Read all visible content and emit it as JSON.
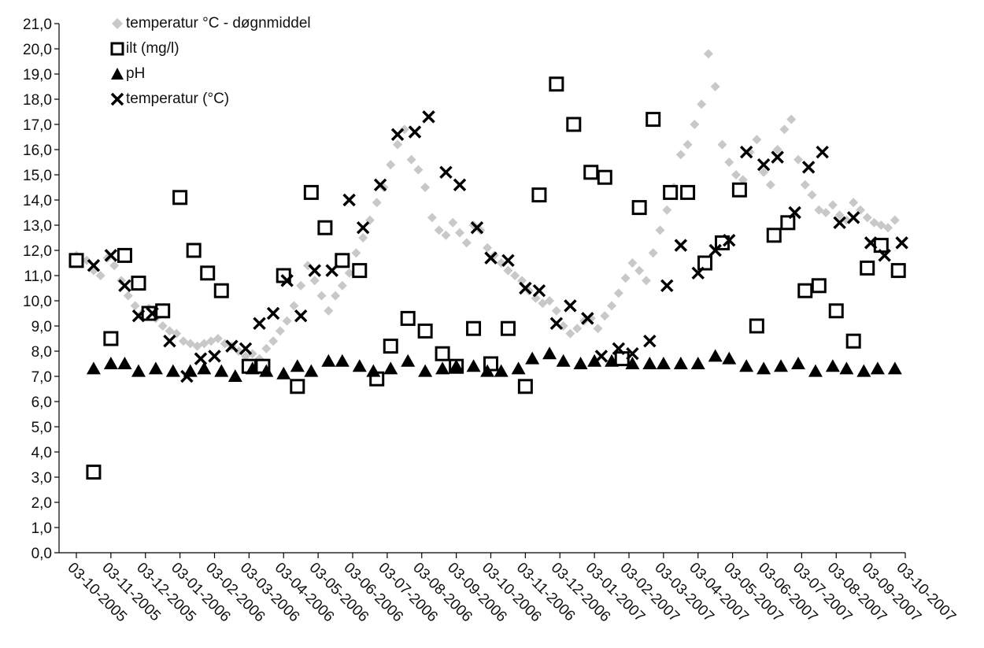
{
  "chart_data": {
    "type": "scatter",
    "title": "",
    "xlabel": "",
    "ylabel": "",
    "ylim": [
      0,
      21
    ],
    "y_ticks": [
      "0,0",
      "1,0",
      "2,0",
      "3,0",
      "4,0",
      "5,0",
      "6,0",
      "7,0",
      "8,0",
      "9,0",
      "10,0",
      "11,0",
      "12,0",
      "13,0",
      "14,0",
      "15,0",
      "16,0",
      "17,0",
      "18,0",
      "19,0",
      "20,0",
      "21,0"
    ],
    "x_ticks": [
      "03-10-2005",
      "03-11-2005",
      "03-12-2005",
      "03-01-2006",
      "03-02-2006",
      "03-03-2006",
      "03-04-2006",
      "03-05-2006",
      "03-06-2006",
      "03-07-2006",
      "03-08-2006",
      "03-09-2006",
      "03-10-2006",
      "03-11-2006",
      "03-12-2006",
      "03-01-2007",
      "03-02-2007",
      "03-03-2007",
      "03-04-2007",
      "03-05-2007",
      "03-06-2007",
      "03-07-2007",
      "03-08-2007",
      "03-09-2007",
      "03-10-2007"
    ],
    "grid": false,
    "legend_position": "top-left",
    "series": [
      {
        "name": "temperatur °C - døgnmiddel",
        "marker": "diamond",
        "color": "#c8c8c8",
        "x": [
          0,
          0.3,
          0.5,
          0.7,
          0.9,
          1.1,
          1.3,
          1.5,
          1.7,
          1.9,
          2.1,
          2.3,
          2.5,
          2.7,
          2.9,
          3.1,
          3.3,
          3.5,
          3.7,
          3.9,
          4.1,
          4.3,
          4.5,
          4.7,
          4.9,
          5.1,
          5.3,
          5.5,
          5.7,
          5.9,
          6.1,
          6.3,
          6.5,
          6.7,
          6.9,
          7.1,
          7.3,
          7.5,
          7.7,
          7.9,
          8.1,
          8.3,
          8.5,
          8.7,
          8.9,
          9.1,
          9.3,
          9.5,
          9.7,
          9.9,
          10.1,
          10.3,
          10.5,
          10.7,
          10.9,
          11.1,
          11.3,
          11.5,
          11.7,
          11.9,
          12.1,
          12.3,
          12.5,
          12.7,
          12.9,
          13.1,
          13.3,
          13.5,
          13.7,
          13.9,
          14.1,
          14.3,
          14.5,
          14.7,
          14.9,
          15.1,
          15.3,
          15.5,
          15.7,
          15.9,
          16.1,
          16.3,
          16.5,
          16.7,
          16.9,
          17.1,
          17.3,
          17.5,
          17.7,
          17.9,
          18.1,
          18.3,
          18.5,
          18.7,
          18.9,
          19.1,
          19.3,
          19.5,
          19.7,
          19.9,
          20.1,
          20.3,
          20.5,
          20.7,
          20.9,
          21.1,
          21.3,
          21.5,
          21.7,
          21.9,
          22.1,
          22.3,
          22.5,
          22.7,
          22.9,
          23.1,
          23.3,
          23.5,
          23.7
        ],
        "y": [
          11.8,
          11.6,
          11.2,
          11.0,
          11.7,
          11.4,
          10.8,
          10.2,
          9.8,
          9.5,
          9.7,
          9.3,
          9.0,
          8.8,
          8.7,
          8.4,
          8.3,
          8.2,
          8.3,
          8.4,
          8.5,
          8.3,
          8.2,
          8.0,
          7.8,
          7.9,
          7.7,
          8.1,
          8.4,
          8.8,
          9.2,
          9.8,
          10.6,
          11.4,
          10.8,
          10.2,
          9.6,
          10.2,
          10.6,
          11.1,
          11.9,
          12.5,
          13.2,
          13.9,
          14.5,
          15.4,
          16.2,
          16.8,
          15.6,
          15.2,
          14.5,
          13.3,
          12.8,
          12.6,
          13.1,
          12.7,
          12.3,
          13.0,
          12.8,
          12.1,
          11.8,
          11.5,
          11.2,
          11.0,
          10.8,
          10.4,
          10.1,
          9.9,
          10.0,
          9.6,
          9.0,
          8.7,
          8.9,
          9.2,
          9.3,
          8.9,
          9.4,
          9.8,
          10.3,
          10.9,
          11.5,
          11.2,
          10.8,
          11.9,
          12.8,
          13.6,
          14.5,
          15.8,
          16.2,
          17.0,
          17.8,
          19.8,
          18.5,
          16.2,
          15.5,
          15.0,
          14.8,
          15.9,
          16.4,
          15.1,
          14.6,
          16.0,
          16.8,
          17.2,
          15.6,
          14.6,
          14.2,
          13.6,
          13.5,
          13.8,
          13.4,
          13.2,
          13.9,
          13.6,
          13.3,
          13.1,
          13.0,
          12.9,
          13.2
        ]
      },
      {
        "name": "ilt (mg/l)",
        "marker": "square",
        "color": "#000000",
        "x": [
          0,
          0.5,
          1.0,
          1.4,
          1.8,
          2.1,
          2.5,
          3.0,
          3.4,
          3.8,
          4.2,
          5.0,
          5.4,
          6.0,
          6.4,
          6.8,
          7.2,
          7.7,
          8.2,
          8.7,
          9.1,
          9.6,
          10.1,
          10.6,
          11.0,
          11.5,
          12.0,
          12.5,
          13.0,
          13.4,
          13.9,
          14.4,
          14.9,
          15.3,
          15.8,
          16.3,
          16.7,
          17.2,
          17.7,
          18.2,
          18.7,
          19.2,
          19.7,
          20.2,
          20.6,
          21.1,
          21.5,
          22.0,
          22.5,
          22.9,
          23.3,
          23.8
        ],
        "y": [
          11.6,
          3.2,
          8.5,
          11.8,
          10.7,
          9.5,
          9.6,
          14.1,
          12.0,
          11.1,
          10.4,
          7.4,
          7.4,
          11.0,
          6.6,
          14.3,
          12.9,
          11.6,
          11.2,
          6.9,
          8.2,
          9.3,
          8.8,
          7.9,
          7.4,
          8.9,
          7.5,
          8.9,
          6.6,
          14.2,
          18.6,
          17.0,
          15.1,
          14.9,
          7.7,
          13.7,
          17.2,
          14.3,
          14.3,
          11.5,
          12.3,
          14.4,
          9.0,
          12.6,
          13.1,
          10.4,
          10.6,
          9.6,
          8.4,
          11.3,
          12.2,
          11.2
        ]
      },
      {
        "name": "pH",
        "marker": "triangle",
        "color": "#000000",
        "x": [
          0.5,
          1.0,
          1.4,
          1.8,
          2.3,
          2.8,
          3.3,
          3.7,
          4.2,
          4.6,
          5.1,
          5.5,
          6.0,
          6.4,
          6.8,
          7.3,
          7.7,
          8.2,
          8.6,
          9.1,
          9.6,
          10.1,
          10.6,
          11.0,
          11.5,
          11.9,
          12.3,
          12.8,
          13.2,
          13.7,
          14.1,
          14.6,
          15.0,
          15.5,
          16.1,
          16.6,
          17.0,
          17.5,
          18.0,
          18.5,
          18.9,
          19.4,
          19.9,
          20.4,
          20.9,
          21.4,
          21.9,
          22.3,
          22.8,
          23.2,
          23.7
        ],
        "y": [
          7.3,
          7.5,
          7.5,
          7.2,
          7.3,
          7.2,
          7.2,
          7.3,
          7.2,
          7.0,
          7.3,
          7.2,
          7.1,
          7.4,
          7.2,
          7.6,
          7.6,
          7.4,
          7.2,
          7.3,
          7.6,
          7.2,
          7.3,
          7.4,
          7.4,
          7.2,
          7.2,
          7.3,
          7.7,
          7.9,
          7.6,
          7.5,
          7.6,
          7.6,
          7.5,
          7.5,
          7.5,
          7.5,
          7.5,
          7.8,
          7.7,
          7.4,
          7.3,
          7.4,
          7.5,
          7.2,
          7.4,
          7.3,
          7.2,
          7.3,
          7.3
        ]
      },
      {
        "name": "temperatur (°C)",
        "marker": "cross",
        "color": "#000000",
        "x": [
          0.5,
          1.0,
          1.4,
          1.8,
          2.2,
          2.7,
          3.2,
          3.6,
          4.0,
          4.5,
          4.9,
          5.3,
          5.7,
          6.1,
          6.5,
          6.9,
          7.4,
          7.9,
          8.3,
          8.8,
          9.3,
          9.8,
          10.2,
          10.7,
          11.1,
          11.6,
          12.0,
          12.5,
          13.0,
          13.4,
          13.9,
          14.3,
          14.8,
          15.2,
          15.7,
          16.1,
          16.6,
          17.1,
          17.5,
          18.0,
          18.5,
          18.9,
          19.4,
          19.9,
          20.3,
          20.8,
          21.2,
          21.6,
          22.1,
          22.5,
          23.0,
          23.4,
          23.9
        ],
        "y": [
          11.4,
          11.8,
          10.6,
          9.4,
          9.5,
          8.4,
          7.0,
          7.7,
          7.8,
          8.2,
          8.1,
          9.1,
          9.5,
          10.8,
          9.4,
          11.2,
          11.2,
          14.0,
          12.9,
          14.6,
          16.6,
          16.7,
          17.3,
          15.1,
          14.6,
          12.9,
          11.7,
          11.6,
          10.5,
          10.4,
          9.1,
          9.8,
          9.3,
          7.8,
          8.1,
          7.9,
          8.4,
          10.6,
          12.2,
          11.1,
          12.0,
          12.4,
          15.9,
          15.4,
          15.7,
          13.5,
          15.3,
          15.9,
          13.1,
          13.3,
          12.3,
          11.8,
          12.3
        ]
      }
    ]
  }
}
